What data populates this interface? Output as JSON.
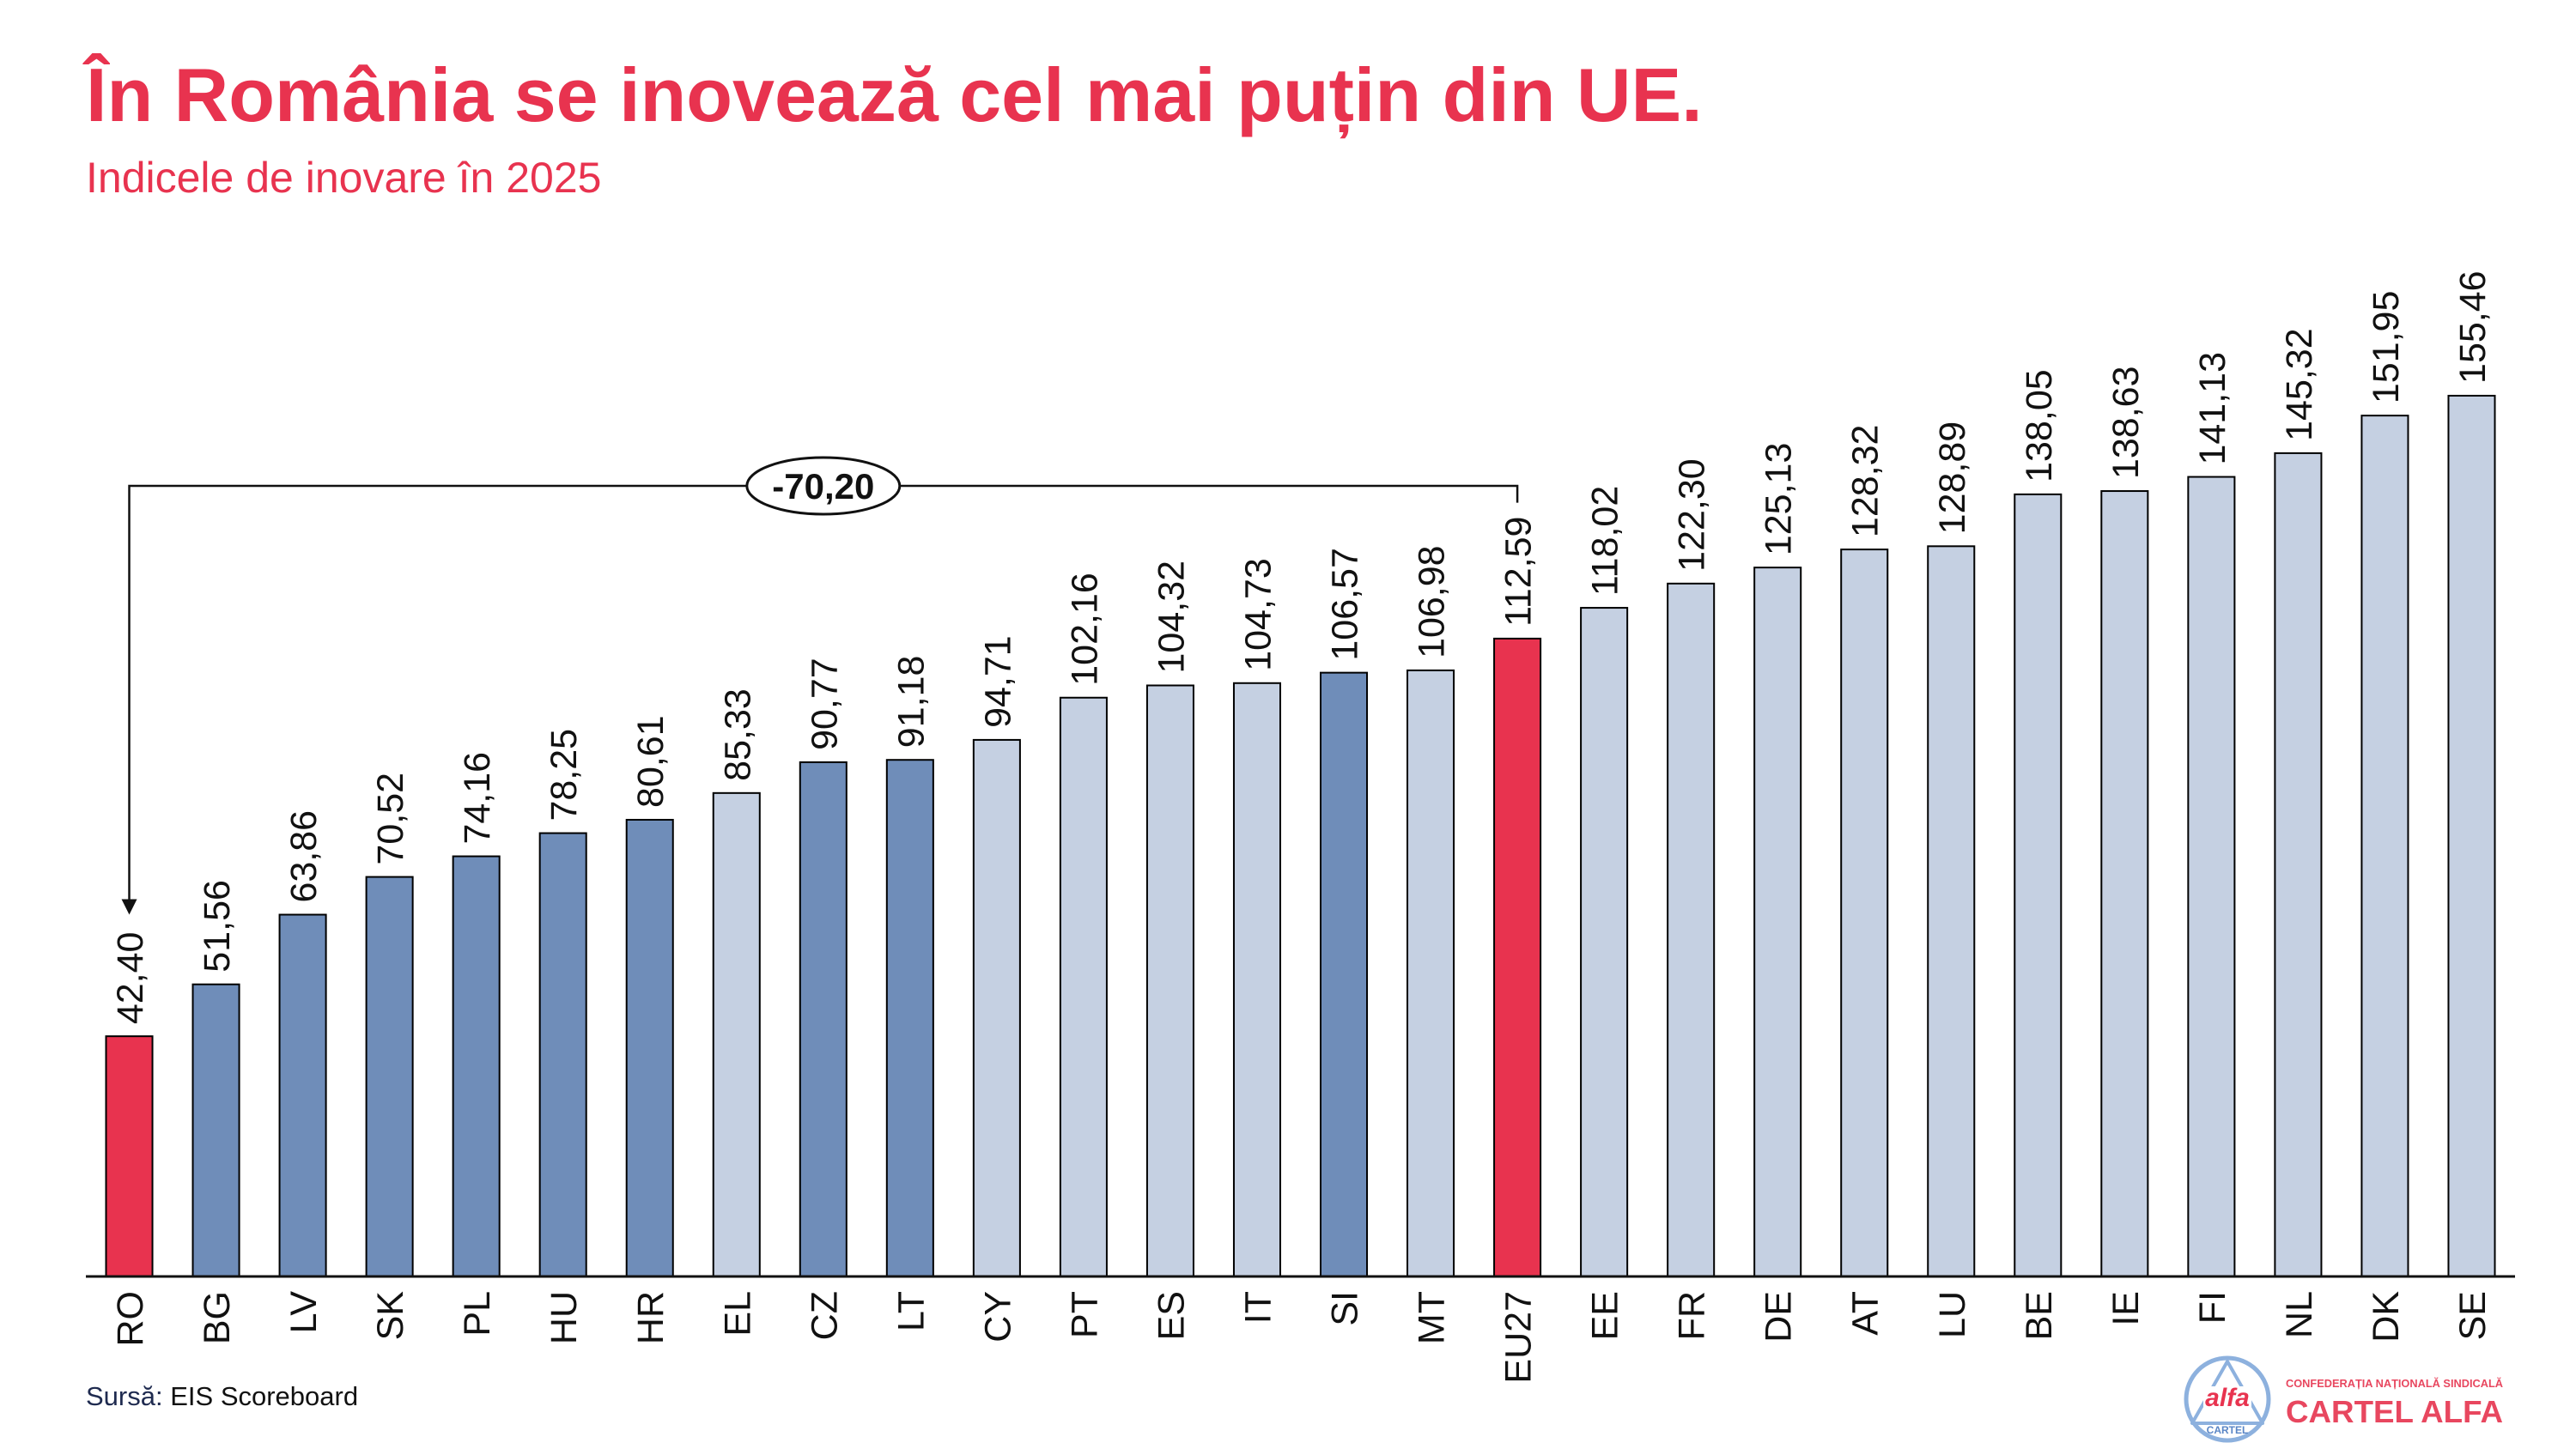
{
  "theme": {
    "accent": "#E8334F",
    "ink": "#111111",
    "source_label": "#1E2A4F"
  },
  "chart_data": {
    "type": "bar",
    "title": "În România se inovează cel mai puțin din UE.",
    "subtitle": "Indicele de inovare în 2025",
    "categories": [
      "RO",
      "BG",
      "LV",
      "SK",
      "PL",
      "HU",
      "HR",
      "EL",
      "CZ",
      "LT",
      "CY",
      "PT",
      "ES",
      "IT",
      "SI",
      "MT",
      "EU27",
      "EE",
      "FR",
      "DE",
      "AT",
      "LU",
      "BE",
      "IE",
      "FI",
      "NL",
      "DK",
      "SE"
    ],
    "values": [
      42.4,
      51.56,
      63.86,
      70.52,
      74.16,
      78.25,
      80.61,
      85.33,
      90.77,
      91.18,
      94.71,
      102.16,
      104.32,
      104.73,
      106.57,
      106.98,
      112.59,
      118.02,
      122.3,
      125.13,
      128.32,
      128.89,
      138.05,
      138.63,
      141.13,
      145.32,
      151.95,
      155.46
    ],
    "data_labels": [
      "42,40",
      "51,56",
      "63,86",
      "70,52",
      "74,16",
      "78,25",
      "80,61",
      "85,33",
      "90,77",
      "91,18",
      "94,71",
      "102,16",
      "104,32",
      "104,73",
      "106,57",
      "106,98",
      "112,59",
      "118,02",
      "122,30",
      "125,13",
      "128,32",
      "128,89",
      "138,05",
      "138,63",
      "141,13",
      "145,32",
      "151,95",
      "155,46"
    ],
    "bar_color_groups": [
      "highlight",
      "dark",
      "dark",
      "dark",
      "dark",
      "dark",
      "dark",
      "light",
      "dark",
      "dark",
      "light",
      "light",
      "light",
      "light",
      "dark",
      "light",
      "highlight",
      "light",
      "light",
      "light",
      "light",
      "light",
      "light",
      "light",
      "light",
      "light",
      "light",
      "light"
    ],
    "colors": {
      "highlight": "#E8334F",
      "dark": "#6F8DB9",
      "light": "#C5D0E2",
      "outline": "#000000"
    },
    "ylim": [
      0,
      160
    ],
    "grid": false,
    "legend": "none",
    "annotations": [
      {
        "type": "difference",
        "from": "RO",
        "to": "EU27",
        "label": "-70,20"
      }
    ]
  },
  "source": {
    "label": "Sursă:",
    "text": "EIS Scoreboard"
  },
  "logo": {
    "emblem_text": "alfa",
    "emblem_subtext": "CARTEL",
    "tagline": "CONFEDERAȚIA NAȚIONALĂ SINDICALĂ",
    "name": "CARTEL ALFA",
    "colors": {
      "ring": "#8DB1DE",
      "text": "#E8475F",
      "emblem_subtext": "#5A86C6"
    }
  }
}
